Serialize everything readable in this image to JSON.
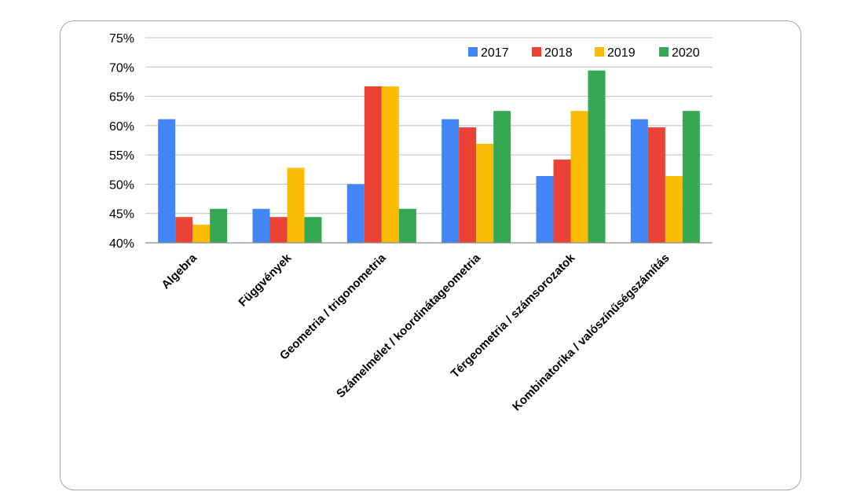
{
  "chart_data": {
    "type": "bar",
    "categories": [
      "Algebra",
      "Függvények",
      "Geometria / trigonometria",
      "Számelmélet / koordinátageometria",
      "Térgeometria / számsorozatok",
      "Kombinatorika / valószínűségszámítás"
    ],
    "series": [
      {
        "name": "2017",
        "color": "#4285f4",
        "values": [
          61.1,
          45.8,
          50.0,
          61.1,
          51.4,
          61.1
        ]
      },
      {
        "name": "2018",
        "color": "#ea4335",
        "values": [
          44.4,
          44.4,
          66.7,
          59.7,
          54.2,
          59.7
        ]
      },
      {
        "name": "2019",
        "color": "#fbbc04",
        "values": [
          43.1,
          52.8,
          66.7,
          56.9,
          62.5,
          51.4
        ]
      },
      {
        "name": "2020",
        "color": "#34a853",
        "values": [
          45.8,
          44.4,
          45.8,
          62.5,
          69.4,
          62.5
        ]
      }
    ],
    "y_ticks": [
      "40%",
      "45%",
      "50%",
      "55%",
      "60%",
      "65%",
      "70%",
      "75%"
    ],
    "ylim": [
      40,
      75
    ],
    "unit": "%",
    "grid": true,
    "legend_position": "top-right"
  }
}
